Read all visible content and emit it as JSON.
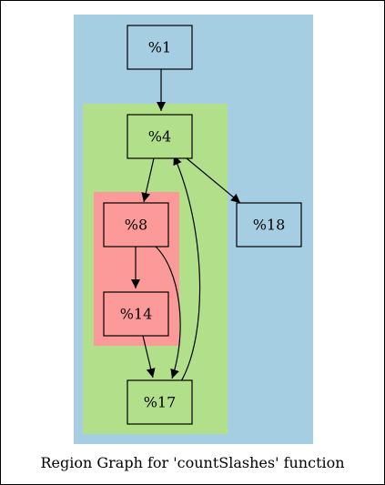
{
  "caption": "Region Graph for 'countSlashes' function",
  "colors": {
    "outer_region": "#a6cee3",
    "middle_region": "#b2df8a",
    "inner_region": "#fb9a99",
    "edge": "#000000"
  },
  "nodes": {
    "n1": "%1",
    "n4": "%4",
    "n8": "%8",
    "n14": "%14",
    "n17": "%17",
    "n18": "%18"
  },
  "edges": [
    {
      "from": "%1",
      "to": "%4"
    },
    {
      "from": "%4",
      "to": "%8"
    },
    {
      "from": "%4",
      "to": "%18"
    },
    {
      "from": "%8",
      "to": "%14"
    },
    {
      "from": "%8",
      "to": "%17"
    },
    {
      "from": "%14",
      "to": "%17"
    },
    {
      "from": "%17",
      "to": "%4"
    }
  ]
}
